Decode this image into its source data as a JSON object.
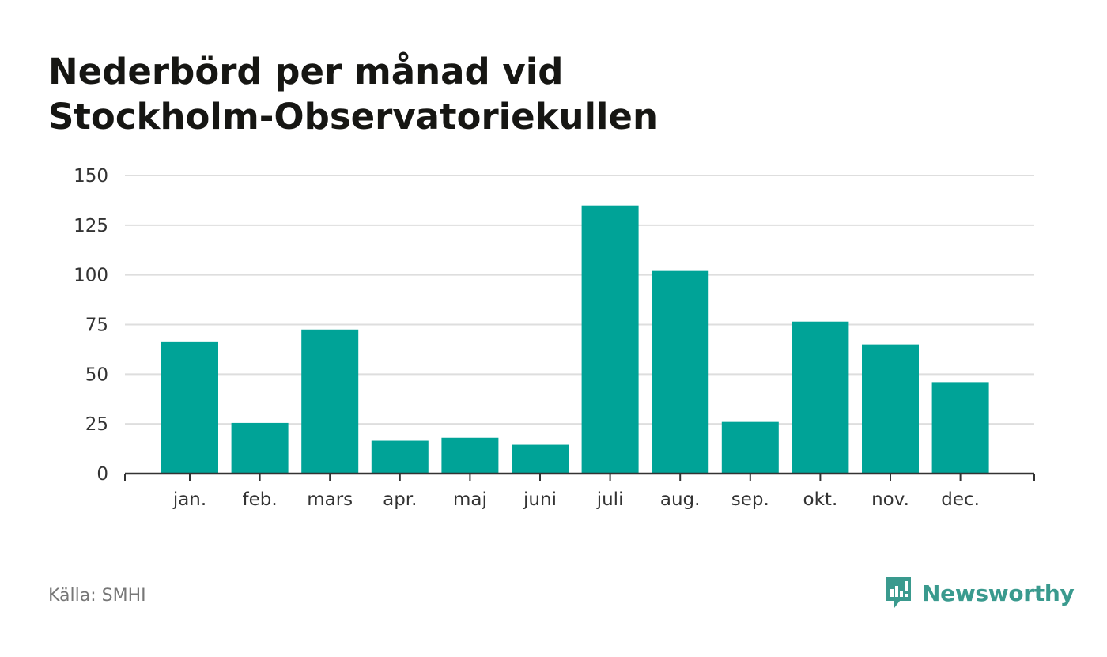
{
  "title_lines": [
    "Nederbörd per månad vid",
    "Stockholm-Observatoriekullen"
  ],
  "source": "Källa: SMHI",
  "brand": {
    "name": "Newsworthy",
    "icon": "newsworthy-logo-icon",
    "color": "#3a9a8e"
  },
  "colors": {
    "bar": "#00a397",
    "grid": "#dedede",
    "axis": "#333333",
    "tick_text": "#333333"
  },
  "chart_data": {
    "type": "bar",
    "title": "Nederbörd per månad vid Stockholm-Observatoriekullen",
    "xlabel": "",
    "ylabel": "",
    "categories": [
      "jan.",
      "feb.",
      "mars",
      "apr.",
      "maj",
      "juni",
      "juli",
      "aug.",
      "sep.",
      "okt.",
      "nov.",
      "dec."
    ],
    "values": [
      66.5,
      25.5,
      72.5,
      16.5,
      18,
      14.5,
      135,
      102,
      26,
      76.5,
      65,
      46
    ],
    "ylim": [
      0,
      150
    ],
    "yticks": [
      0,
      25,
      50,
      75,
      100,
      125,
      150
    ],
    "grid": true,
    "legend": "none"
  }
}
